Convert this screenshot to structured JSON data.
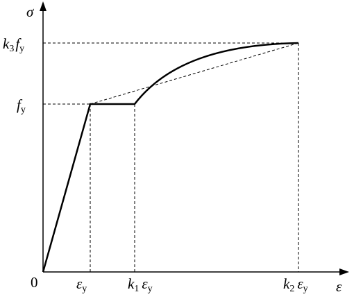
{
  "axes": {
    "y_label": "σ",
    "x_label": "ε",
    "origin": "0"
  },
  "y_labels": {
    "k3fy": {
      "coef": "k",
      "coef_sub": "3",
      "base": "f",
      "sub": "y"
    },
    "fy": {
      "base": "f",
      "sub": "y"
    }
  },
  "x_labels": {
    "ey": {
      "base": "ε",
      "sub": "y"
    },
    "k1ey": {
      "coef": "k",
      "coef_sub": "1",
      "base": "ε",
      "sub": "y"
    },
    "k2ey": {
      "coef": "k",
      "coef_sub": "2",
      "base": "ε",
      "sub": "y"
    }
  }
}
